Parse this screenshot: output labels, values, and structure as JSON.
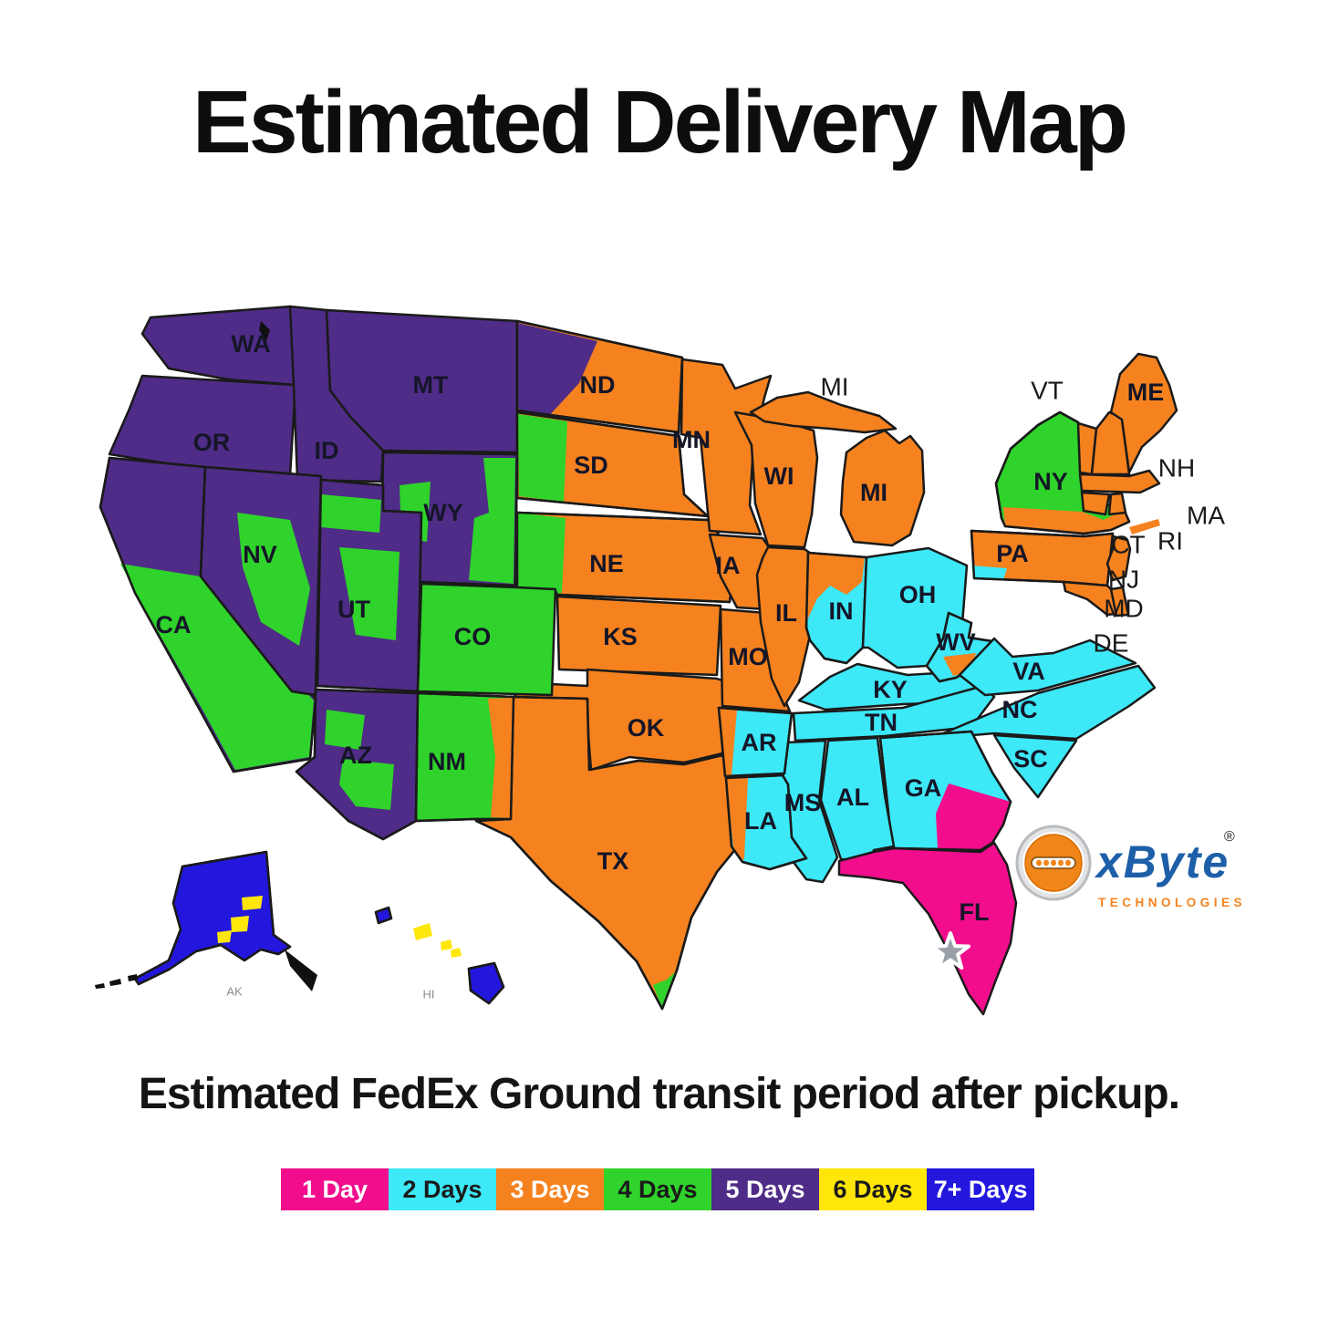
{
  "title": "Estimated Delivery Map",
  "caption": "Estimated FedEx Ground transit period after pickup.",
  "logo": {
    "brand": "xByte",
    "registered": "®",
    "subtitle": "TECHNOLOGIES"
  },
  "origin": {
    "state": "FL",
    "marker": "star"
  },
  "colors": {
    "border": "#1a1a1a",
    "state_label": "#151528",
    "outside_label": "#1a1a1a",
    "small_label": "#8d8d8d",
    "decor_dark": "#101010",
    "star_fill": "#989fa6",
    "star_stroke": "#ffffff",
    "logo_blue": "#1d5fa8",
    "logo_orange": "#f08519",
    "logo_ring": "#b9bcbf"
  },
  "legend": [
    {
      "key": "1",
      "label": "1 Day",
      "color": "#f20d8c",
      "text": "#ffffff"
    },
    {
      "key": "2",
      "label": "2 Days",
      "color": "#3de8f7",
      "text": "#1a1a1a"
    },
    {
      "key": "3",
      "label": "3 Days",
      "color": "#f5821f",
      "text": "#ffffff"
    },
    {
      "key": "4",
      "label": "4 Days",
      "color": "#2fd32b",
      "text": "#1a1a1a"
    },
    {
      "key": "5",
      "label": "5 Days",
      "color": "#4f2c87",
      "text": "#ffffff"
    },
    {
      "key": "6",
      "label": "6 Days",
      "color": "#ffe60a",
      "text": "#1a1a1a"
    },
    {
      "key": "7+",
      "label": "7+ Days",
      "color": "#2317de",
      "text": "#ffffff"
    }
  ],
  "map": {
    "states": [
      {
        "id": "WA",
        "label": "WA",
        "days": "5"
      },
      {
        "id": "OR",
        "label": "OR",
        "days": "5"
      },
      {
        "id": "ID",
        "label": "ID",
        "days": "5"
      },
      {
        "id": "MT",
        "label": "MT",
        "days": "5"
      },
      {
        "id": "WY",
        "label": "WY",
        "days": "5",
        "patches": [
          "4",
          "4"
        ]
      },
      {
        "id": "CA",
        "label": "CA",
        "days": "5",
        "patches": [
          "4"
        ]
      },
      {
        "id": "NV",
        "label": "NV",
        "days": "5",
        "patches": [
          "4"
        ]
      },
      {
        "id": "UT",
        "label": "UT",
        "days": "5",
        "patches": [
          "4",
          "4"
        ]
      },
      {
        "id": "AZ",
        "label": "AZ",
        "days": "5",
        "patches": [
          "4",
          "4"
        ]
      },
      {
        "id": "ND",
        "label": "ND",
        "days": "3",
        "patches": [
          "5"
        ]
      },
      {
        "id": "SD",
        "label": "SD",
        "days": "3",
        "patches": [
          "4"
        ]
      },
      {
        "id": "NE",
        "label": "NE",
        "days": "3",
        "patches": [
          "4"
        ]
      },
      {
        "id": "KS",
        "label": "KS",
        "days": "3"
      },
      {
        "id": "OK",
        "label": "OK",
        "days": "3"
      },
      {
        "id": "TX",
        "label": "TX",
        "days": "3",
        "patches": [
          "4"
        ]
      },
      {
        "id": "MN",
        "label": "MN",
        "days": "3"
      },
      {
        "id": "IA",
        "label": "IA",
        "days": "3"
      },
      {
        "id": "MO",
        "label": "MO",
        "days": "3"
      },
      {
        "id": "WI",
        "label": "WI",
        "days": "3"
      },
      {
        "id": "IL",
        "label": "IL",
        "days": "3"
      },
      {
        "id": "CO",
        "label": "CO",
        "days": "4"
      },
      {
        "id": "NM",
        "label": "NM",
        "days": "4",
        "patches": [
          "3"
        ]
      },
      {
        "id": "MI",
        "label": "MI",
        "days": "3"
      },
      {
        "id": "IN",
        "label": "IN",
        "days": "2",
        "patches": [
          "3"
        ]
      },
      {
        "id": "OH",
        "label": "OH",
        "days": "2",
        "patches": [
          "3"
        ]
      },
      {
        "id": "PA",
        "label": "PA",
        "days": "3",
        "patches": [
          "2"
        ]
      },
      {
        "id": "NY",
        "label": "NY",
        "days": "4",
        "patches": [
          "3",
          "3"
        ]
      },
      {
        "id": "VT",
        "label": "VT",
        "days": "3",
        "label_outside": true
      },
      {
        "id": "NH",
        "label": "NH",
        "days": "3",
        "label_outside": true
      },
      {
        "id": "ME",
        "label": "ME",
        "days": "3"
      },
      {
        "id": "MA",
        "label": "MA",
        "days": "3",
        "label_outside": true
      },
      {
        "id": "CT",
        "label": "CT",
        "days": "3",
        "label_outside": true
      },
      {
        "id": "RI",
        "label": "RI",
        "days": "3",
        "label_outside": true
      },
      {
        "id": "NJ",
        "label": "NJ",
        "days": "3",
        "label_outside": true
      },
      {
        "id": "MD",
        "label": "MD",
        "days": "3",
        "label_outside": true
      },
      {
        "id": "DE",
        "label": "DE",
        "days": "3",
        "label_outside": true
      },
      {
        "id": "KY",
        "label": "KY",
        "days": "2"
      },
      {
        "id": "TN",
        "label": "TN",
        "days": "2"
      },
      {
        "id": "WV",
        "label": "WV",
        "days": "2",
        "patches": [
          "3"
        ]
      },
      {
        "id": "VA",
        "label": "VA",
        "days": "2"
      },
      {
        "id": "NC",
        "label": "NC",
        "days": "2"
      },
      {
        "id": "SC",
        "label": "SC",
        "days": "2"
      },
      {
        "id": "GA",
        "label": "GA",
        "days": "2",
        "patches": [
          "1"
        ]
      },
      {
        "id": "AL",
        "label": "AL",
        "days": "2"
      },
      {
        "id": "MS",
        "label": "MS",
        "days": "2"
      },
      {
        "id": "AR",
        "label": "AR",
        "days": "2",
        "patches": [
          "3"
        ]
      },
      {
        "id": "LA",
        "label": "LA",
        "days": "2",
        "patches": [
          "3"
        ]
      },
      {
        "id": "FL",
        "label": "FL",
        "days": "1"
      },
      {
        "id": "AK",
        "label": "AK",
        "days": "7+",
        "patches": [
          "6",
          "6",
          "6"
        ]
      },
      {
        "id": "HI",
        "label": "HI",
        "days": "7+",
        "patches": [
          "6",
          "6",
          "6"
        ]
      }
    ]
  }
}
